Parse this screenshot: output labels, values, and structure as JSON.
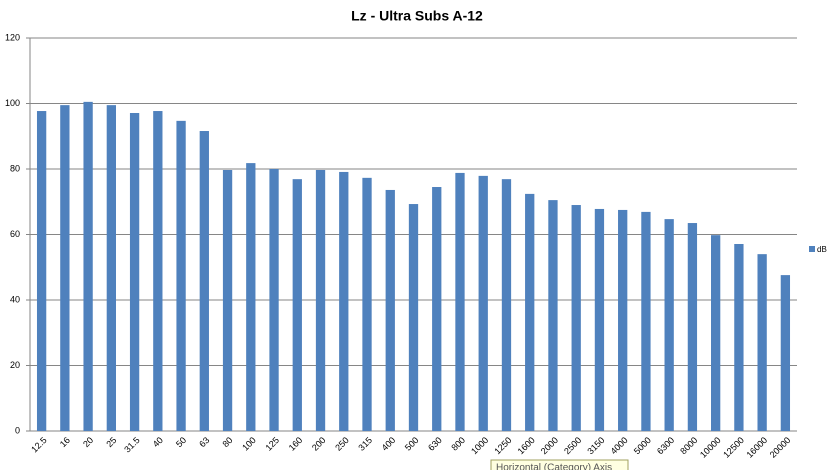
{
  "chart_data": {
    "type": "bar",
    "title": "Lz - Ultra Subs A-12",
    "categories": [
      "12.5",
      "16",
      "20",
      "25",
      "31.5",
      "40",
      "50",
      "63",
      "80",
      "100",
      "125",
      "160",
      "200",
      "250",
      "315",
      "400",
      "500",
      "630",
      "800",
      "1000",
      "1250",
      "1600",
      "2000",
      "2500",
      "3150",
      "4000",
      "5000",
      "6300",
      "8000",
      "10000",
      "12500",
      "16000",
      "20000"
    ],
    "series": [
      {
        "name": "dB",
        "color": "#4f81bd",
        "values": [
          97.7,
          99.5,
          100.5,
          99.5,
          97.1,
          97.7,
          94.7,
          91.6,
          79.7,
          81.8,
          80,
          76.9,
          79.7,
          79.1,
          77.3,
          73.6,
          69.3,
          74.5,
          78.8,
          77.9,
          76.9,
          72.4,
          70.5,
          69,
          67.8,
          67.5,
          66.9,
          64.7,
          63.5,
          59.8,
          57.1,
          54,
          47.6
        ]
      }
    ],
    "ylim": [
      0,
      120
    ],
    "yticks": [
      0,
      20,
      40,
      60,
      80,
      100,
      120
    ],
    "grid": true,
    "legend": "right",
    "tooltip": "Horizontal (Category) Axis"
  }
}
